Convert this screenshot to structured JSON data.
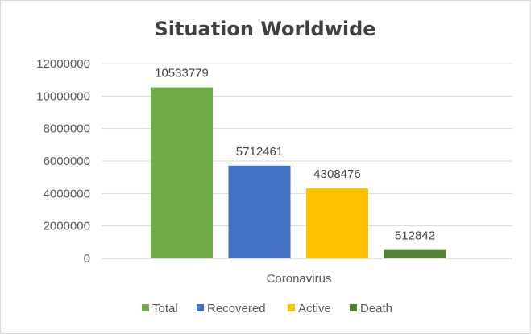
{
  "chart_data": {
    "type": "bar",
    "title": "Situation Worldwide",
    "categories": [
      "Coronavirus"
    ],
    "series": [
      {
        "name": "Total",
        "values": [
          10533779
        ],
        "color": "#70ad47"
      },
      {
        "name": "Recovered",
        "values": [
          5712461
        ],
        "color": "#4472c4"
      },
      {
        "name": "Active",
        "values": [
          4308476
        ],
        "color": "#ffc000"
      },
      {
        "name": "Death",
        "values": [
          512842
        ],
        "color": "#548235"
      }
    ],
    "y_ticks": [
      "0",
      "2000000",
      "4000000",
      "6000000",
      "8000000",
      "10000000",
      "12000000"
    ],
    "ylim": [
      0,
      12000000
    ],
    "grid": true,
    "legend_position": "bottom",
    "data_labels": [
      "10533779",
      "5712461",
      "4308476",
      "512842"
    ]
  }
}
